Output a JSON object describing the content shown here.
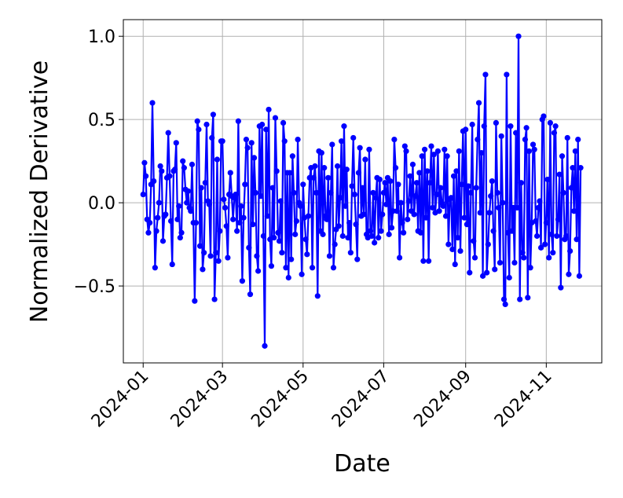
{
  "chart_data": {
    "type": "line",
    "xlabel": "Date",
    "ylabel": "Normalized Derivative",
    "xlim": [
      "2023-12-17",
      "2024-12-13"
    ],
    "ylim": [
      -0.962,
      1.1
    ],
    "xticks": [
      "2024-01",
      "2024-03",
      "2024-05",
      "2024-07",
      "2024-09",
      "2024-11"
    ],
    "yticks": [
      {
        "value": -0.5,
        "label": "−0.5"
      },
      {
        "value": 0,
        "label": "0.0"
      },
      {
        "value": 0.5,
        "label": "0.5"
      },
      {
        "value": 1,
        "label": "1.0"
      }
    ],
    "grid": true,
    "x": [
      "2024-01-01",
      "2024-01-02",
      "2024-01-03",
      "2024-01-04",
      "2024-01-05",
      "2024-01-06",
      "2024-01-07",
      "2024-01-08",
      "2024-01-09",
      "2024-01-10",
      "2024-01-11",
      "2024-01-12",
      "2024-01-13",
      "2024-01-14",
      "2024-01-15",
      "2024-01-16",
      "2024-01-17",
      "2024-01-18",
      "2024-01-19",
      "2024-01-20",
      "2024-01-21",
      "2024-01-22",
      "2024-01-23",
      "2024-01-24",
      "2024-01-25",
      "2024-01-26",
      "2024-01-27",
      "2024-01-28",
      "2024-01-29",
      "2024-01-30",
      "2024-01-31",
      "2024-02-01",
      "2024-02-02",
      "2024-02-03",
      "2024-02-04",
      "2024-02-05",
      "2024-02-06",
      "2024-02-07",
      "2024-02-08",
      "2024-02-09",
      "2024-02-10",
      "2024-02-11",
      "2024-02-12",
      "2024-02-13",
      "2024-02-14",
      "2024-02-15",
      "2024-02-16",
      "2024-02-17",
      "2024-02-18",
      "2024-02-19",
      "2024-02-20",
      "2024-02-21",
      "2024-02-22",
      "2024-02-23",
      "2024-02-24",
      "2024-02-25",
      "2024-02-26",
      "2024-02-27",
      "2024-02-28",
      "2024-02-29",
      "2024-03-01",
      "2024-03-02",
      "2024-03-03",
      "2024-03-04",
      "2024-03-05",
      "2024-03-06",
      "2024-03-07",
      "2024-03-08",
      "2024-03-09",
      "2024-03-10",
      "2024-03-11",
      "2024-03-12",
      "2024-03-13",
      "2024-03-14",
      "2024-03-15",
      "2024-03-16",
      "2024-03-17",
      "2024-03-18",
      "2024-03-19",
      "2024-03-20",
      "2024-03-21",
      "2024-03-22",
      "2024-03-23",
      "2024-03-24",
      "2024-03-25",
      "2024-03-26",
      "2024-03-27",
      "2024-03-28",
      "2024-03-29",
      "2024-03-30",
      "2024-03-31",
      "2024-04-01",
      "2024-04-02",
      "2024-04-03",
      "2024-04-04",
      "2024-04-05",
      "2024-04-06",
      "2024-04-07",
      "2024-04-08",
      "2024-04-09",
      "2024-04-10",
      "2024-04-11",
      "2024-04-12",
      "2024-04-13",
      "2024-04-14",
      "2024-04-15",
      "2024-04-16",
      "2024-04-17",
      "2024-04-18",
      "2024-04-19",
      "2024-04-20",
      "2024-04-21",
      "2024-04-22",
      "2024-04-23",
      "2024-04-24",
      "2024-04-25",
      "2024-04-26",
      "2024-04-27",
      "2024-04-28",
      "2024-04-29",
      "2024-04-30",
      "2024-05-01",
      "2024-05-02",
      "2024-05-03",
      "2024-05-04",
      "2024-05-05",
      "2024-05-06",
      "2024-05-07",
      "2024-05-08",
      "2024-05-09",
      "2024-05-10",
      "2024-05-11",
      "2024-05-12",
      "2024-05-13",
      "2024-05-14",
      "2024-05-15",
      "2024-05-16",
      "2024-05-17",
      "2024-05-18",
      "2024-05-19",
      "2024-05-20",
      "2024-05-21",
      "2024-05-22",
      "2024-05-23",
      "2024-05-24",
      "2024-05-25",
      "2024-05-26",
      "2024-05-27",
      "2024-05-28",
      "2024-05-29",
      "2024-05-30",
      "2024-05-31",
      "2024-06-01",
      "2024-06-02",
      "2024-06-03",
      "2024-06-04",
      "2024-06-05",
      "2024-06-06",
      "2024-06-07",
      "2024-06-08",
      "2024-06-09",
      "2024-06-10",
      "2024-06-11",
      "2024-06-12",
      "2024-06-13",
      "2024-06-14",
      "2024-06-15",
      "2024-06-16",
      "2024-06-17",
      "2024-06-18",
      "2024-06-19",
      "2024-06-20",
      "2024-06-21",
      "2024-06-22",
      "2024-06-23",
      "2024-06-24",
      "2024-06-25",
      "2024-06-26",
      "2024-06-27",
      "2024-06-28",
      "2024-06-29",
      "2024-06-30",
      "2024-07-01",
      "2024-07-02",
      "2024-07-03",
      "2024-07-04",
      "2024-07-05",
      "2024-07-06",
      "2024-07-07",
      "2024-07-08",
      "2024-07-09",
      "2024-07-10",
      "2024-07-11",
      "2024-07-12",
      "2024-07-13",
      "2024-07-14",
      "2024-07-15",
      "2024-07-16",
      "2024-07-17",
      "2024-07-18",
      "2024-07-19",
      "2024-07-20",
      "2024-07-21",
      "2024-07-22",
      "2024-07-23",
      "2024-07-24",
      "2024-07-25",
      "2024-07-26",
      "2024-07-27",
      "2024-07-28",
      "2024-07-29",
      "2024-07-30",
      "2024-07-31",
      "2024-08-01",
      "2024-08-02",
      "2024-08-03",
      "2024-08-04",
      "2024-08-05",
      "2024-08-06",
      "2024-08-07",
      "2024-08-08",
      "2024-08-09",
      "2024-08-10",
      "2024-08-11",
      "2024-08-12",
      "2024-08-13",
      "2024-08-14",
      "2024-08-15",
      "2024-08-16",
      "2024-08-17",
      "2024-08-18",
      "2024-08-19",
      "2024-08-20",
      "2024-08-21",
      "2024-08-22",
      "2024-08-23",
      "2024-08-24",
      "2024-08-25",
      "2024-08-26",
      "2024-08-27",
      "2024-08-28",
      "2024-08-29",
      "2024-08-30",
      "2024-08-31",
      "2024-09-01",
      "2024-09-02",
      "2024-09-03",
      "2024-09-04",
      "2024-09-05",
      "2024-09-06",
      "2024-09-07",
      "2024-09-08",
      "2024-09-09",
      "2024-09-10",
      "2024-09-11",
      "2024-09-12",
      "2024-09-13",
      "2024-09-14",
      "2024-09-15",
      "2024-09-16",
      "2024-09-17",
      "2024-09-18",
      "2024-09-19",
      "2024-09-20",
      "2024-09-21",
      "2024-09-22",
      "2024-09-23",
      "2024-09-24",
      "2024-09-25",
      "2024-09-26",
      "2024-09-27",
      "2024-09-28",
      "2024-09-29",
      "2024-09-30",
      "2024-10-01",
      "2024-10-02",
      "2024-10-03",
      "2024-10-04",
      "2024-10-05",
      "2024-10-06",
      "2024-10-07",
      "2024-10-08",
      "2024-10-09",
      "2024-10-10",
      "2024-10-11",
      "2024-10-12",
      "2024-10-13",
      "2024-10-14",
      "2024-10-15",
      "2024-10-16",
      "2024-10-17",
      "2024-10-18",
      "2024-10-19",
      "2024-10-20",
      "2024-10-21",
      "2024-10-22",
      "2024-10-23",
      "2024-10-24",
      "2024-10-25",
      "2024-10-26",
      "2024-10-27",
      "2024-10-28",
      "2024-10-29",
      "2024-10-30",
      "2024-10-31",
      "2024-11-01",
      "2024-11-02",
      "2024-11-03",
      "2024-11-04",
      "2024-11-05",
      "2024-11-06",
      "2024-11-07",
      "2024-11-08",
      "2024-11-09",
      "2024-11-10",
      "2024-11-11",
      "2024-11-12",
      "2024-11-13",
      "2024-11-14",
      "2024-11-15",
      "2024-11-16",
      "2024-11-17",
      "2024-11-18",
      "2024-11-19",
      "2024-11-20",
      "2024-11-21",
      "2024-11-22",
      "2024-11-23",
      "2024-11-24",
      "2024-11-25",
      "2024-11-26",
      "2024-11-27"
    ],
    "series": [
      {
        "color": "#0000ff",
        "values": [
          0.05,
          0.24,
          0.16,
          -0.1,
          -0.18,
          -0.12,
          0.11,
          0.6,
          0.13,
          -0.39,
          -0.17,
          -0.09,
          0.0,
          0.22,
          0.19,
          -0.23,
          -0.08,
          -0.07,
          0.15,
          0.42,
          0.16,
          -0.11,
          -0.37,
          0.19,
          0.2,
          0.36,
          -0.1,
          -0.02,
          -0.21,
          -0.18,
          0.25,
          0.21,
          0.08,
          0.0,
          0.07,
          -0.03,
          -0.05,
          0.23,
          -0.12,
          -0.59,
          -0.12,
          0.49,
          0.44,
          -0.26,
          0.09,
          -0.4,
          -0.3,
          0.12,
          0.47,
          0.01,
          -0.01,
          -0.32,
          0.39,
          0.53,
          -0.58,
          -0.3,
          0.26,
          -0.35,
          -0.17,
          0.37,
          0.37,
          0.02,
          -0.03,
          -0.14,
          -0.33,
          0.05,
          0.18,
          0.04,
          -0.1,
          0.03,
          0.05,
          -0.17,
          0.49,
          -0.12,
          -0.02,
          -0.47,
          -0.09,
          0.11,
          0.38,
          0.33,
          -0.27,
          -0.55,
          0.36,
          -0.13,
          0.27,
          0.06,
          -0.32,
          -0.41,
          0.46,
          0.04,
          0.47,
          -0.2,
          -0.86,
          0.44,
          -0.08,
          0.56,
          -0.22,
          -0.38,
          0.09,
          -0.21,
          0.51,
          0.19,
          -0.18,
          -0.23,
          0.01,
          -0.3,
          0.48,
          0.37,
          -0.39,
          0.18,
          -0.45,
          0.18,
          -0.34,
          0.28,
          0.06,
          -0.19,
          -0.11,
          0.38,
          0.0,
          -0.02,
          -0.43,
          0.11,
          -0.09,
          -0.22,
          -0.31,
          -0.08,
          0.15,
          0.21,
          -0.39,
          0.15,
          0.22,
          0.06,
          -0.56,
          0.31,
          -0.17,
          0.3,
          -0.19,
          0.21,
          -0.08,
          -0.1,
          0.15,
          -0.32,
          0.06,
          0.35,
          -0.39,
          -0.25,
          -0.16,
          0.22,
          -0.14,
          0.03,
          0.37,
          -0.2,
          0.46,
          -0.02,
          0.2,
          -0.21,
          -0.12,
          -0.3,
          0.1,
          0.39,
          0.05,
          -0.13,
          -0.34,
          0.18,
          0.33,
          -0.08,
          0.09,
          -0.07,
          0.26,
          -0.19,
          -0.21,
          0.32,
          -0.17,
          -0.2,
          0.06,
          -0.24,
          0.03,
          0.15,
          -0.21,
          0.14,
          -0.17,
          -0.07,
          0.06,
          0.12,
          -0.01,
          0.15,
          -0.19,
          0.13,
          -0.15,
          -0.05,
          0.38,
          0.21,
          -0.05,
          0.11,
          -0.33,
          0.0,
          -0.12,
          -0.18,
          0.34,
          0.31,
          -0.1,
          0.01,
          0.16,
          -0.05,
          0.23,
          -0.07,
          0.04,
          0.12,
          -0.17,
          0.18,
          -0.18,
          0.28,
          -0.35,
          0.32,
          -0.09,
          0.19,
          -0.35,
          0.12,
          0.34,
          -0.03,
          0.29,
          -0.06,
          0.05,
          0.31,
          -0.05,
          0.09,
          0.0,
          -0.02,
          0.32,
          -0.08,
          0.28,
          -0.25,
          0.02,
          0.03,
          -0.28,
          0.16,
          -0.37,
          0.19,
          -0.21,
          0.31,
          -0.29,
          0.11,
          0.43,
          -0.09,
          0.44,
          -0.13,
          0.1,
          -0.42,
          0.06,
          0.47,
          -0.23,
          -0.33,
          0.09,
          0.38,
          0.6,
          -0.06,
          0.3,
          -0.44,
          0.46,
          0.77,
          -0.42,
          -0.25,
          -0.06,
          0.04,
          0.13,
          -0.17,
          -0.4,
          0.48,
          0.06,
          -0.03,
          -0.36,
          0.4,
          0.0,
          -0.58,
          -0.61,
          0.77,
          -0.18,
          -0.45,
          0.46,
          -0.17,
          -0.03,
          -0.36,
          0.42,
          -0.03,
          1.0,
          -0.58,
          0.12,
          -0.3,
          -0.33,
          0.38,
          0.45,
          -0.57,
          0.31,
          -0.39,
          -0.12,
          0.35,
          0.32,
          -0.11,
          -0.2,
          -0.03,
          0.01,
          -0.27,
          0.5,
          0.52,
          -0.25,
          -0.12,
          0.14,
          -0.33,
          0.48,
          -0.19,
          -0.3,
          0.42,
          0.46,
          -0.2,
          -0.1,
          0.17,
          -0.51,
          0.28,
          0.06,
          -0.22,
          -0.2,
          0.39,
          -0.43,
          -0.29,
          0.09,
          0.21,
          -0.05,
          0.31,
          -0.22,
          0.38,
          -0.44,
          0.21
        ]
      }
    ]
  }
}
